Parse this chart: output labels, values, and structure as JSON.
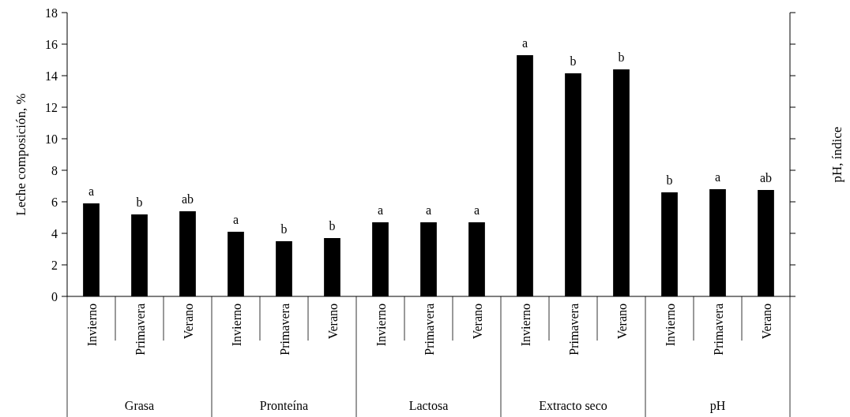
{
  "chart_data": {
    "type": "bar",
    "ylabel": "Leche composición, %",
    "y2label": "pH, índice",
    "categories": [
      "Invierno",
      "Primavera",
      "Verano",
      "Invierno",
      "Primavera",
      "Verano",
      "Invierno",
      "Primavera",
      "Verano",
      "Invierno",
      "Primavera",
      "Verano",
      "Invierno",
      "Primavera",
      "Verano"
    ],
    "series": [
      {
        "color": "#000000",
        "values": [
          5.9,
          5.2,
          5.4,
          4.1,
          3.5,
          3.7,
          4.7,
          4.7,
          4.7,
          15.3,
          14.15,
          14.4,
          6.6,
          6.8,
          6.75
        ],
        "value_labels": [
          "a",
          "b",
          "ab",
          "a",
          "b",
          "b",
          "a",
          "a",
          "a",
          "a",
          "b",
          "b",
          "b",
          "a",
          "ab"
        ]
      }
    ],
    "annotations": [
      "Grasa",
      "Pronteína",
      "Lactosa",
      "Extracto seco",
      "pH"
    ],
    "ylim": [
      0,
      18
    ],
    "yticks": [
      0,
      2,
      4,
      6,
      8,
      10,
      12,
      14,
      16,
      18
    ],
    "grid": false
  }
}
